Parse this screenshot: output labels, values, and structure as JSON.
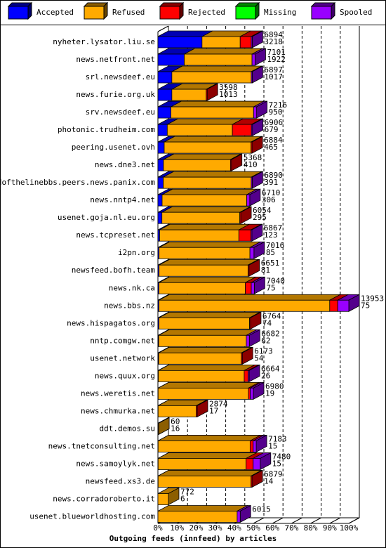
{
  "chart_data": {
    "type": "bar",
    "title": "Outgoing feeds (innfeed) by articles",
    "categories": [
      "nyheter.lysator.liu.se",
      "news.netfront.net",
      "srl.newsdeef.eu",
      "news.furie.org.uk",
      "srv.newsdeef.eu",
      "photonic.trudheim.com",
      "peering.usenet.ovh",
      "news.dne3.net",
      "endofthelinebbs.peers.news.panix.com",
      "news.nntp4.net",
      "usenet.goja.nl.eu.org",
      "news.tcpreset.net",
      "i2pn.org",
      "newsfeed.bofh.team",
      "news.nk.ca",
      "news.bbs.nz",
      "news.hispagatos.org",
      "nntp.comgw.net",
      "usenet.network",
      "news.quux.org",
      "news.weretis.net",
      "news.chmurka.net",
      "ddt.demos.su",
      "news.tnetconsulting.net",
      "news.samoylyk.net",
      "newsfeed.xs3.de",
      "news.corradoroberto.it",
      "usenet.blueworldhosting.com"
    ],
    "series": [
      {
        "name": "Accepted",
        "color": "#0000ff",
        "values": [
          23.1,
          13.8,
          7.3,
          7.3,
          6.8,
          4.9,
          3.3,
          2.9,
          2.8,
          2.2,
          2.1,
          0.9,
          0.6,
          0.6,
          0.5,
          0.5,
          0.5,
          0.4,
          0.4,
          0.2,
          0.1,
          0.1,
          0.1,
          0.1,
          0.1,
          0.1,
          0.0,
          0.0
        ]
      },
      {
        "name": "Refused",
        "color": "#ffaa00",
        "values": [
          20.0,
          35.5,
          41.6,
          18.0,
          43.3,
          34.1,
          45.5,
          35.1,
          46.1,
          44.3,
          40.8,
          41.5,
          47.6,
          46.6,
          45.3,
          89.5,
          47.5,
          45.9,
          43.3,
          45.0,
          47.3,
          20.0,
          0.3,
          48.2,
          46.1,
          48.7,
          5.5,
          41.5
        ]
      },
      {
        "name": "Rejected",
        "color": "#ff0000",
        "values": [
          5.8,
          0,
          0,
          0.5,
          0,
          10.0,
          0.5,
          0.5,
          0,
          0,
          0.5,
          6.3,
          0,
          0.5,
          3.1,
          4.2,
          0.5,
          0,
          0.5,
          2.1,
          1.0,
          0.5,
          0,
          1.6,
          3.7,
          0.5,
          0,
          0
        ]
      },
      {
        "name": "Missing",
        "color": "#00ff00",
        "values": [
          0,
          0,
          0,
          0,
          0,
          0,
          0,
          0,
          0,
          0,
          0,
          0,
          0,
          0,
          0,
          0,
          0,
          0,
          0,
          0,
          0,
          0,
          0,
          0,
          0,
          0,
          0,
          0
        ]
      },
      {
        "name": "Spooled",
        "color": "#9900ff",
        "values": [
          0.5,
          1.6,
          0.5,
          0,
          1.6,
          0.5,
          0,
          0,
          0.5,
          1.6,
          0,
          0.5,
          2.1,
          0,
          1.6,
          5.8,
          0,
          1.6,
          0,
          0.5,
          1.6,
          0,
          0,
          1.6,
          3.7,
          0,
          0,
          1.6
        ]
      }
    ],
    "totals": [
      6894,
      7101,
      6897,
      3598,
      7216,
      6906,
      6884,
      5368,
      6890,
      6710,
      6054,
      6867,
      7016,
      6651,
      7040,
      13953,
      6764,
      6682,
      6173,
      6664,
      6980,
      2874,
      60,
      7183,
      7480,
      6879,
      772,
      6015
    ],
    "accepted_counts": [
      3218,
      1922,
      1017,
      1013,
      950,
      679,
      465,
      410,
      391,
      306,
      295,
      123,
      85,
      81,
      75,
      75,
      74,
      62,
      54,
      26,
      19,
      17,
      16,
      15,
      15,
      14,
      6,
      null
    ],
    "xlim": [
      0,
      100
    ],
    "xticks": [
      {
        "value": 0,
        "label": "0%"
      },
      {
        "value": 10,
        "label": "10%"
      },
      {
        "value": 20,
        "label": "20%"
      },
      {
        "value": 30,
        "label": "30%"
      },
      {
        "value": 40,
        "label": "40%"
      },
      {
        "value": 50,
        "label": "50%"
      },
      {
        "value": 60,
        "label": "60%"
      },
      {
        "value": 70,
        "label": "70%"
      },
      {
        "value": 80,
        "label": "80%"
      },
      {
        "value": 90,
        "label": "90%"
      },
      {
        "value": 100,
        "label": "100%"
      }
    ],
    "grid": true
  }
}
